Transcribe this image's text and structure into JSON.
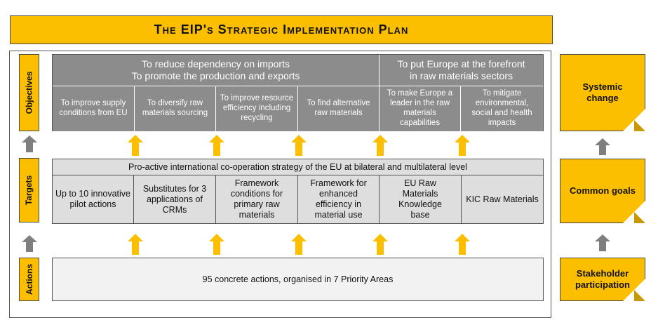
{
  "title": "The EIP's Strategic Implementation Plan",
  "side_labels": {
    "objectives": "Objectives",
    "targets": "Targets",
    "actions": "Actions"
  },
  "objectives": {
    "header_left": "To reduce dependency on imports\nTo promote the production and exports",
    "header_right": "To put Europe at the forefront\nin raw materials sectors",
    "items": [
      "To improve supply conditions from EU",
      "To diversify raw materials sourcing",
      "To improve resource efficiency including recycling",
      "To find alternative raw materials",
      "To make Europe a leader in the raw materials capabilities",
      "To mitigate environmental, social and health impacts"
    ]
  },
  "targets": {
    "header": "Pro-active international co-operation strategy of the EU at bilateral and multilateral level",
    "items": [
      "Up to 10 innovative pilot actions",
      "Substitutes for 3 applications of CRMs",
      "Framework conditions for primary raw materials",
      "Framework for enhanced efficiency in material use",
      "EU Raw Materials Knowledge base",
      "KIC Raw Materials"
    ]
  },
  "actions": {
    "text": "95 concrete actions, organised in 7 Priority Areas"
  },
  "right_notes": [
    "Systemic change",
    "Common goals",
    "Stakeholder participation"
  ],
  "colors": {
    "accent": "#fcbf00",
    "dark_gray": "#8c8c8c",
    "light_gray": "#dedede",
    "arrow_gray": "#7f7f7f"
  }
}
